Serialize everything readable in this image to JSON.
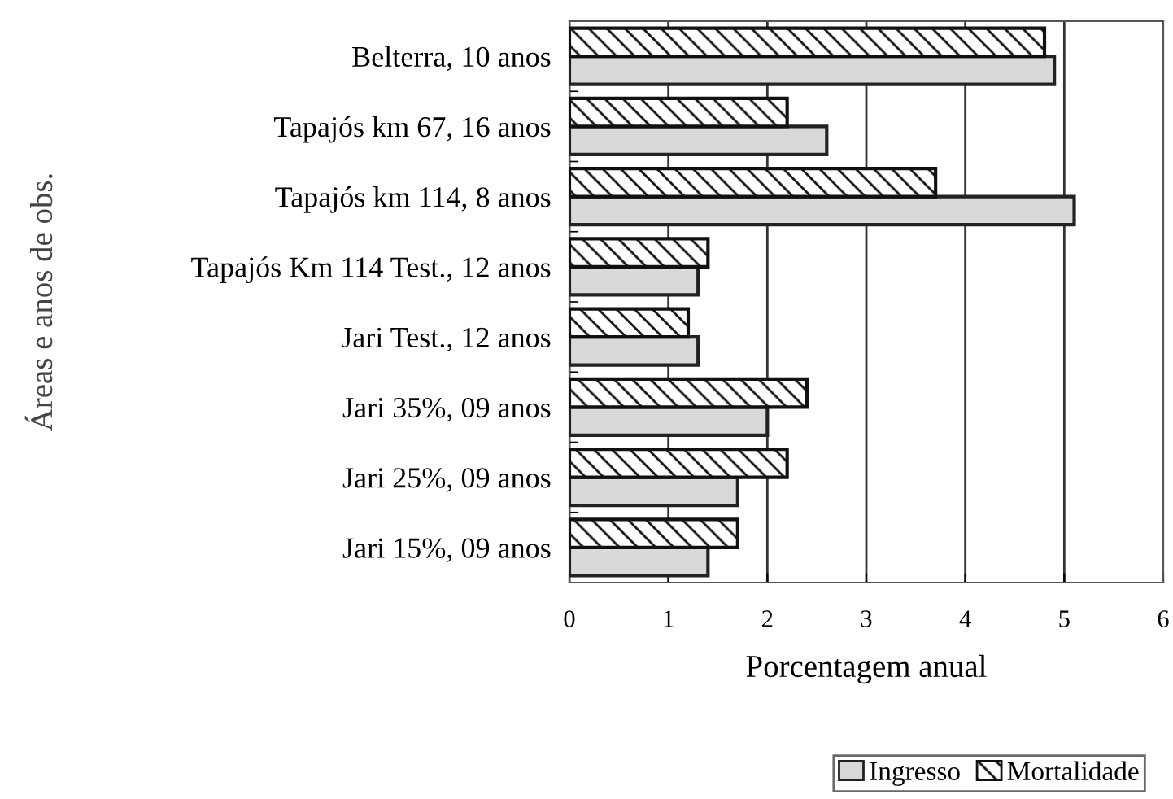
{
  "chart_data": {
    "type": "bar",
    "orientation": "horizontal",
    "xlabel": "Porcentagem anual",
    "ylabel": "Áreas e anos de obs.",
    "categories": [
      "Belterra, 10 anos",
      "Tapajós km 67, 16 anos",
      "Tapajós km 114, 8 anos",
      "Tapajós Km 114 Test., 12 anos",
      "Jari Test., 12 anos",
      "Jari 35%, 09 anos",
      "Jari 25%, 09 anos",
      "Jari 15%, 09 anos"
    ],
    "series": [
      {
        "name": "Ingresso",
        "color": "#d9d9d9",
        "values": [
          4.9,
          2.6,
          5.1,
          1.3,
          1.3,
          2.0,
          1.7,
          1.4
        ]
      },
      {
        "name": "Mortalidade",
        "color": "#111111",
        "values": [
          4.8,
          2.2,
          3.7,
          1.4,
          1.2,
          2.4,
          2.2,
          1.7
        ]
      }
    ],
    "xlim": [
      0,
      6
    ],
    "xticks": [
      0,
      1,
      2,
      3,
      4,
      5,
      6
    ],
    "grid": "x",
    "legend": "bottom right"
  }
}
